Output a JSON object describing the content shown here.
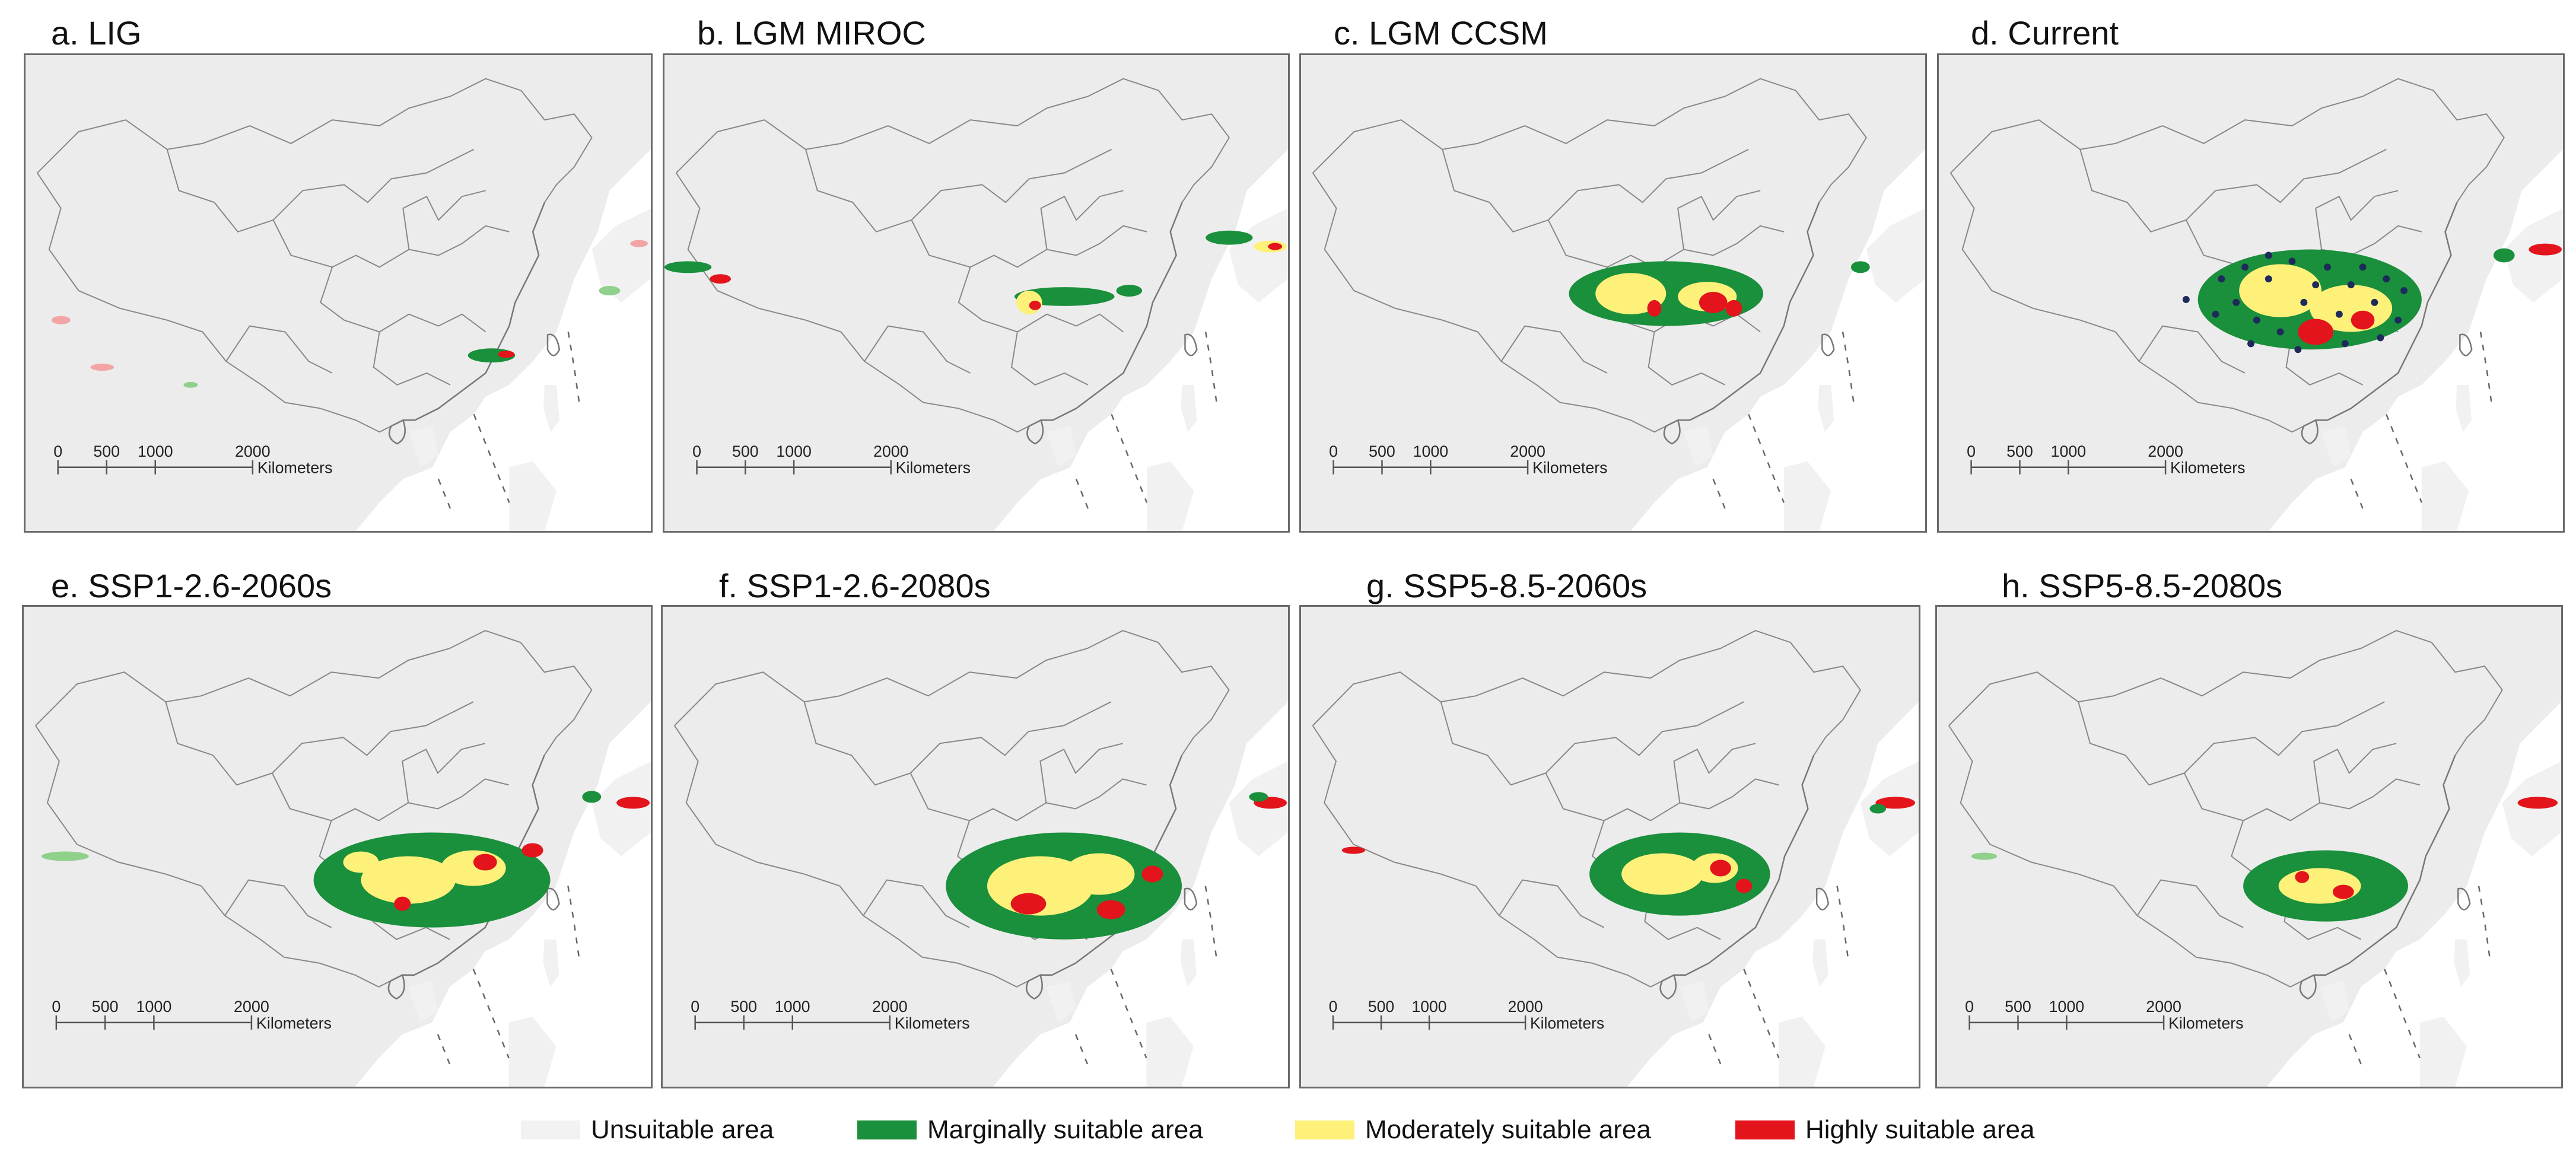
{
  "panels": [
    {
      "title": "a. LIG"
    },
    {
      "title": "b. LGM MIROC"
    },
    {
      "title": "c. LGM CCSM"
    },
    {
      "title": "d. Current"
    },
    {
      "title": "e. SSP1-2.6-2060s"
    },
    {
      "title": "f. SSP1-2.6-2080s"
    },
    {
      "title": "g. SSP5-8.5-2060s"
    },
    {
      "title": "h. SSP5-8.5-2080s"
    }
  ],
  "scale_bar": {
    "ticks": [
      "0",
      "500",
      "1000",
      "2000"
    ],
    "unit": "Kilometers"
  },
  "legend": {
    "items": [
      {
        "label": "Unsuitable area",
        "color": "#f2f2f2"
      },
      {
        "label": "Marginally suitable area",
        "color": "#1a8f3c"
      },
      {
        "label": "Moderately suitable area",
        "color": "#fdf17a"
      },
      {
        "label": "Highly suitable area",
        "color": "#e3141b"
      }
    ]
  }
}
